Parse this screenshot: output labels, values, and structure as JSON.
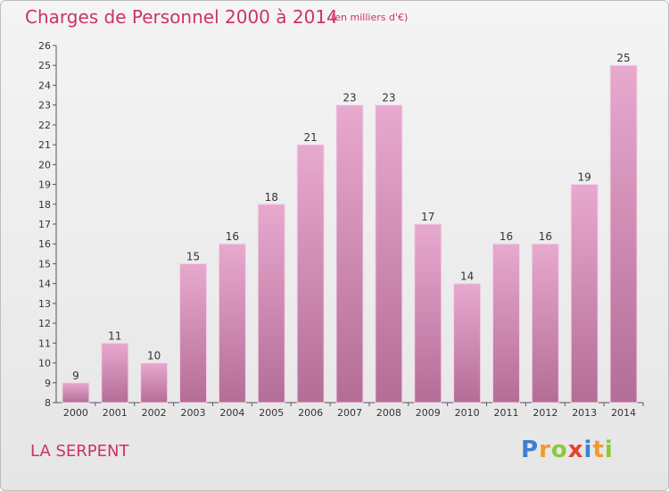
{
  "title": "Charges de Personnel 2000 à 2014",
  "subtitle": "(en milliers d'€)",
  "commune": "LA SERPENT",
  "logo": {
    "text": "Proxiti",
    "colors": [
      "#3d7fd1",
      "#f29a2e",
      "#8dc63f",
      "#e8412c",
      "#3d7fd1",
      "#f29a2e",
      "#8dc63f"
    ]
  },
  "colors": {
    "accent": "#cc3366",
    "bar_top": "#e8a9cf",
    "bar_bottom": "#b46d96"
  },
  "chart_data": {
    "type": "bar",
    "categories": [
      "2000",
      "2001",
      "2002",
      "2003",
      "2004",
      "2005",
      "2006",
      "2007",
      "2008",
      "2009",
      "2010",
      "2011",
      "2012",
      "2013",
      "2014"
    ],
    "values": [
      9,
      11,
      10,
      15,
      16,
      18,
      21,
      23,
      23,
      17,
      14,
      16,
      16,
      19,
      25
    ],
    "ylim": [
      8,
      26
    ],
    "yticks": [
      8,
      9,
      10,
      11,
      12,
      13,
      14,
      15,
      16,
      17,
      18,
      19,
      20,
      21,
      22,
      23,
      24,
      25,
      26
    ],
    "grid": false
  }
}
